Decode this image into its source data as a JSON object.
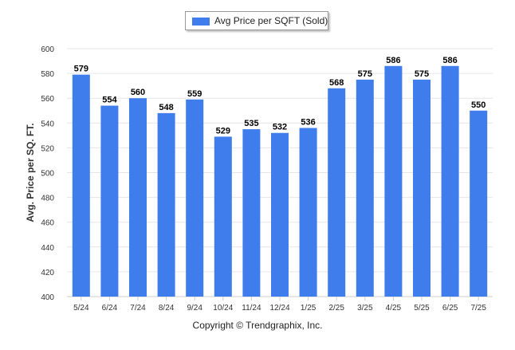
{
  "chart_data": {
    "type": "bar",
    "categories": [
      "5/24",
      "6/24",
      "7/24",
      "8/24",
      "9/24",
      "10/24",
      "11/24",
      "12/24",
      "1/25",
      "2/25",
      "3/25",
      "4/25",
      "5/25",
      "6/25",
      "7/25"
    ],
    "series": [
      {
        "name": "Avg Price per SQFT (Sold)",
        "values": [
          579,
          554,
          560,
          548,
          559,
          529,
          535,
          532,
          536,
          568,
          575,
          586,
          575,
          586,
          550
        ]
      }
    ],
    "ylabel": "Avg. Price per SQ. FT.",
    "xlabel": "",
    "ylim": [
      400,
      600
    ],
    "yticks": [
      400,
      420,
      440,
      460,
      480,
      500,
      520,
      540,
      560,
      580,
      600
    ],
    "grid": true,
    "legend_position": "top-center",
    "data_labels": true,
    "bar_color": "#3f7cec"
  },
  "footer": {
    "copyright": "Copyright © Trendgraphix, Inc."
  }
}
